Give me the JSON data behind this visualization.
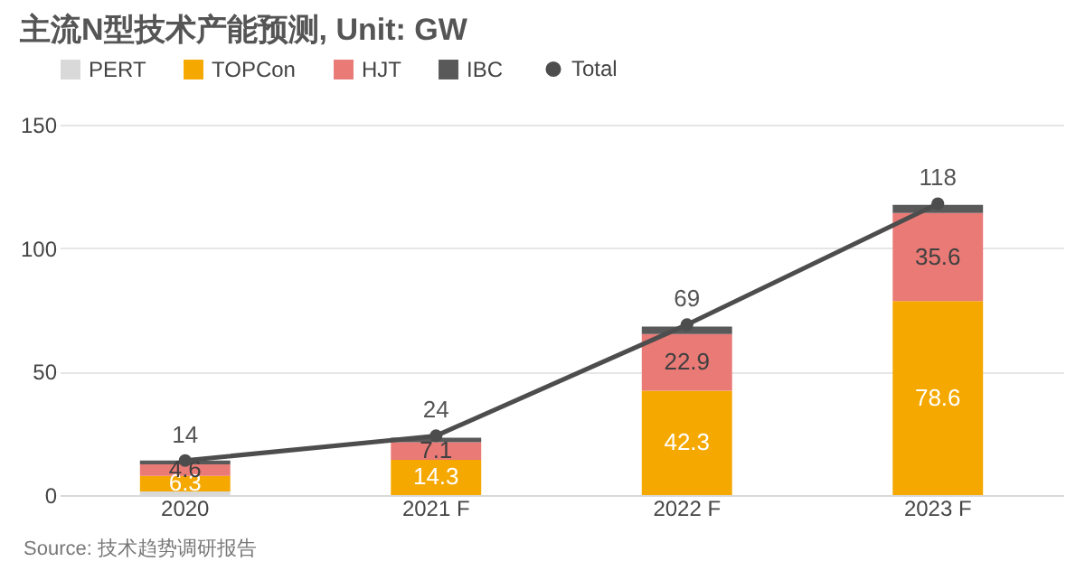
{
  "chart_data": {
    "type": "bar",
    "title": "主流N型技术产能预测, Unit: GW",
    "categories": [
      "2020",
      "2021 F",
      "2022 F",
      "2023 F"
    ],
    "stacked": true,
    "series": [
      {
        "name": "PERT",
        "color": "#d9d9d9",
        "values": [
          1.5,
          null,
          null,
          null
        ]
      },
      {
        "name": "TOPCon",
        "color": "#f5a800",
        "values": [
          6.3,
          14.3,
          42.3,
          78.6
        ],
        "value_labels": [
          "6.3",
          "14.3",
          "42.3",
          "78.6"
        ]
      },
      {
        "name": "HJT",
        "color": "#e97a76",
        "values": [
          4.6,
          7.1,
          22.9,
          35.6
        ],
        "value_labels": [
          "4.6",
          "7.1",
          "22.9",
          "35.6"
        ]
      },
      {
        "name": "IBC",
        "color": "#595959",
        "values": [
          1.6,
          1.8,
          3.0,
          3.3
        ]
      },
      {
        "name": "Total",
        "type": "line",
        "color": "#4d4d4d",
        "values": [
          14,
          24,
          69,
          118
        ],
        "value_labels": [
          "14",
          "24",
          "69",
          "118"
        ],
        "marker": "circle"
      }
    ],
    "ylim": [
      0,
      150
    ],
    "yticks": [
      0,
      50,
      100,
      150
    ],
    "grid": "y",
    "legend": "top left",
    "annotations": [
      "Source: 技术趋势调研报告"
    ]
  }
}
